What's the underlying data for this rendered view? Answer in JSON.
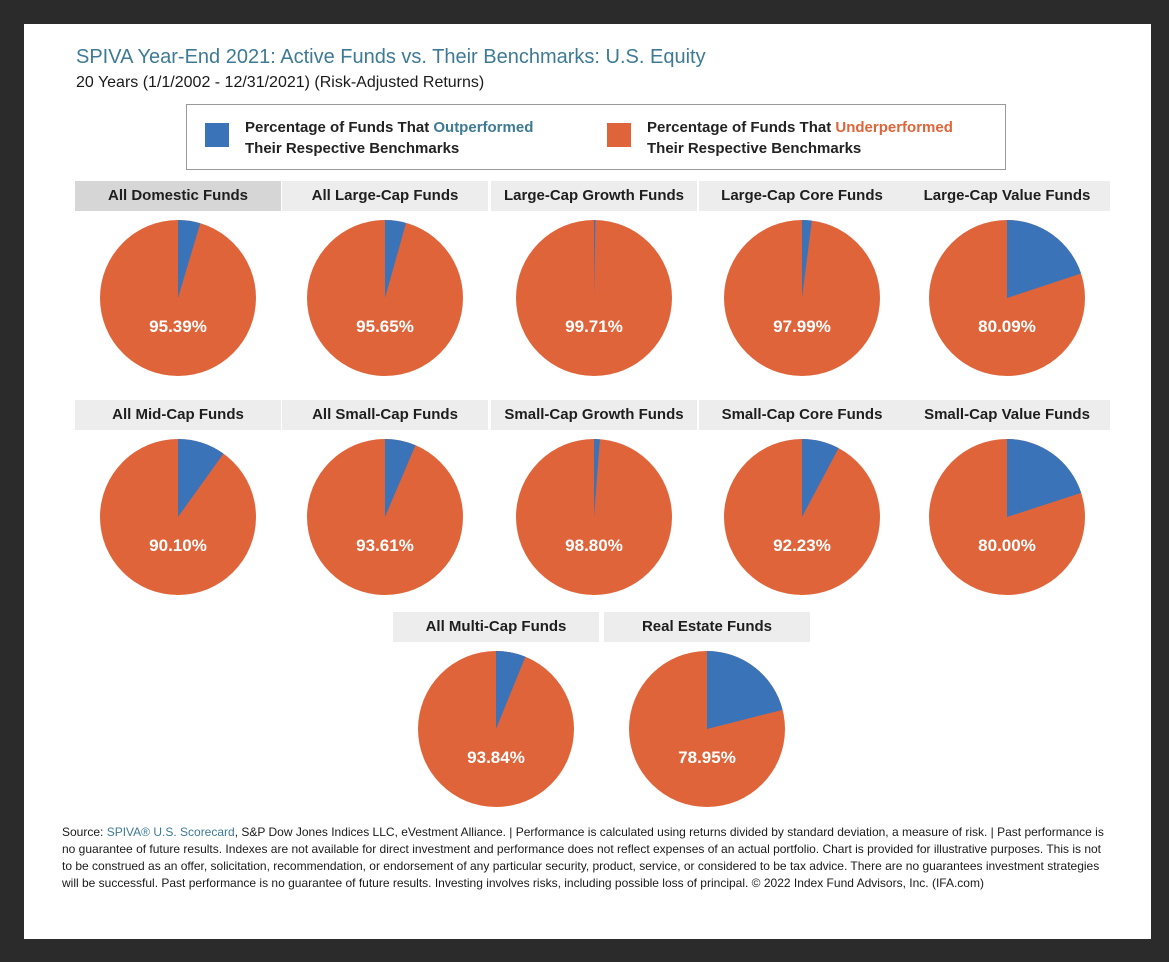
{
  "title": "SPIVA Year-End 2021: Active Funds vs. Their Benchmarks: U.S. Equity",
  "subtitle": "20 Years (1/1/2002 - 12/31/2021) (Risk-Adjusted Returns)",
  "legend": {
    "outperformed": {
      "line1_prefix": "Percentage of Funds That ",
      "line1_highlight": "Outperformed",
      "line2": "Their Respective Benchmarks",
      "color": "#3a73b8"
    },
    "underperformed": {
      "line1_prefix": "Percentage of Funds That ",
      "line1_highlight": "Underperformed",
      "line2": "Their Respective Benchmarks",
      "color": "#e0643a"
    }
  },
  "chart_data": {
    "type": "pie",
    "slices": [
      "Outperformed",
      "Underperformed"
    ],
    "colors": {
      "outperformed": "#3a73b8",
      "underperformed": "#e0643a"
    },
    "pies": [
      {
        "name": "All Domestic Funds",
        "underperformed": 95.39,
        "label": "95.39%"
      },
      {
        "name": "All Large-Cap Funds",
        "underperformed": 95.65,
        "label": "95.65%"
      },
      {
        "name": "Large-Cap Growth Funds",
        "underperformed": 99.71,
        "label": "99.71%"
      },
      {
        "name": "Large-Cap Core Funds",
        "underperformed": 97.99,
        "label": "97.99%"
      },
      {
        "name": "Large-Cap Value Funds",
        "underperformed": 80.09,
        "label": "80.09%"
      },
      {
        "name": "All Mid-Cap Funds",
        "underperformed": 90.1,
        "label": "90.10%"
      },
      {
        "name": "All Small-Cap Funds",
        "underperformed": 93.61,
        "label": "93.61%"
      },
      {
        "name": "Small-Cap Growth Funds",
        "underperformed": 98.8,
        "label": "98.80%"
      },
      {
        "name": "Small-Cap Core Funds",
        "underperformed": 92.23,
        "label": "92.23%"
      },
      {
        "name": "Small-Cap Value Funds",
        "underperformed": 80.0,
        "label": "80.00%"
      },
      {
        "name": "All Multi-Cap Funds",
        "underperformed": 93.84,
        "label": "93.84%"
      },
      {
        "name": "Real Estate Funds",
        "underperformed": 78.95,
        "label": "78.95%"
      }
    ]
  },
  "source": {
    "prefix": "Source: ",
    "link": "SPIVA® U.S. Scorecard",
    "text": ", S&P Dow Jones Indices LLC, eVestment Alliance. | Performance is calculated using returns divided by standard deviation, a measure of risk. | Past performance is no guarantee of future results. Indexes are not available for direct investment and performance does not reflect expenses of an actual portfolio. Chart is provided for illustrative purposes. This is not to be construed as an offer, solicitation, recommendation, or endorsement of any particular security, product, service, or considered to be tax advice. There are no guarantees investment strategies will be successful. Past performance is no guarantee of future results. Investing involves risks, including possible loss of principal. © 2022 Index Fund Advisors, Inc. (IFA.com)"
  }
}
